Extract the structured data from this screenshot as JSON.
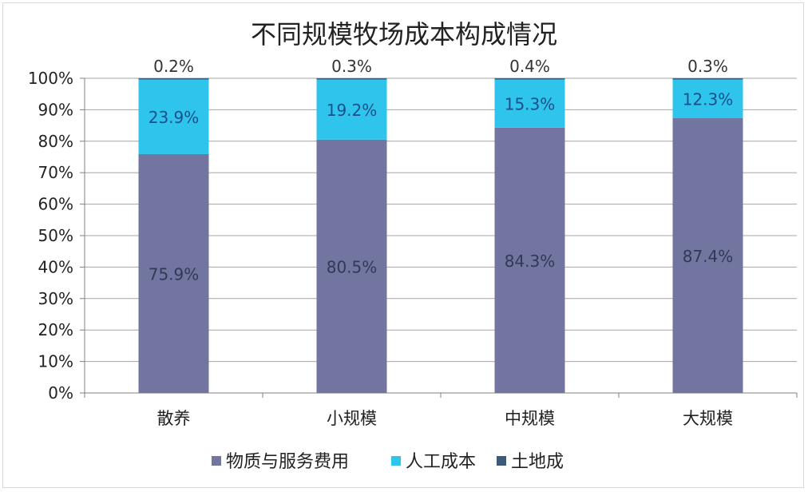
{
  "chart_data": {
    "type": "bar",
    "stacked": true,
    "percent_stacked": true,
    "title": "不同规模牧场成本构成情况",
    "categories": [
      "散养",
      "小规模",
      "中规模",
      "大规模"
    ],
    "series": [
      {
        "name": "物质与服务费用",
        "values": [
          75.9,
          80.5,
          84.3,
          87.4
        ],
        "labels": [
          "75.9%",
          "80.5%",
          "84.3%",
          "87.4%"
        ],
        "color": "#7275a0"
      },
      {
        "name": "人工成本",
        "values": [
          23.9,
          19.2,
          15.3,
          12.3
        ],
        "labels": [
          "23.9%",
          "19.2%",
          "15.3%",
          "12.3%"
        ],
        "color": "#2ec4ec"
      },
      {
        "name": "土地成",
        "values": [
          0.2,
          0.3,
          0.4,
          0.3
        ],
        "labels": [
          "0.2%",
          "0.3%",
          "0.4%",
          "0.3%"
        ],
        "color": "#3c5a7a"
      }
    ],
    "ylim": [
      0,
      100
    ],
    "yticks": [
      "0%",
      "10%",
      "20%",
      "30%",
      "40%",
      "50%",
      "60%",
      "70%",
      "80%",
      "90%",
      "100%"
    ],
    "grid": true,
    "legend_position": "bottom"
  }
}
